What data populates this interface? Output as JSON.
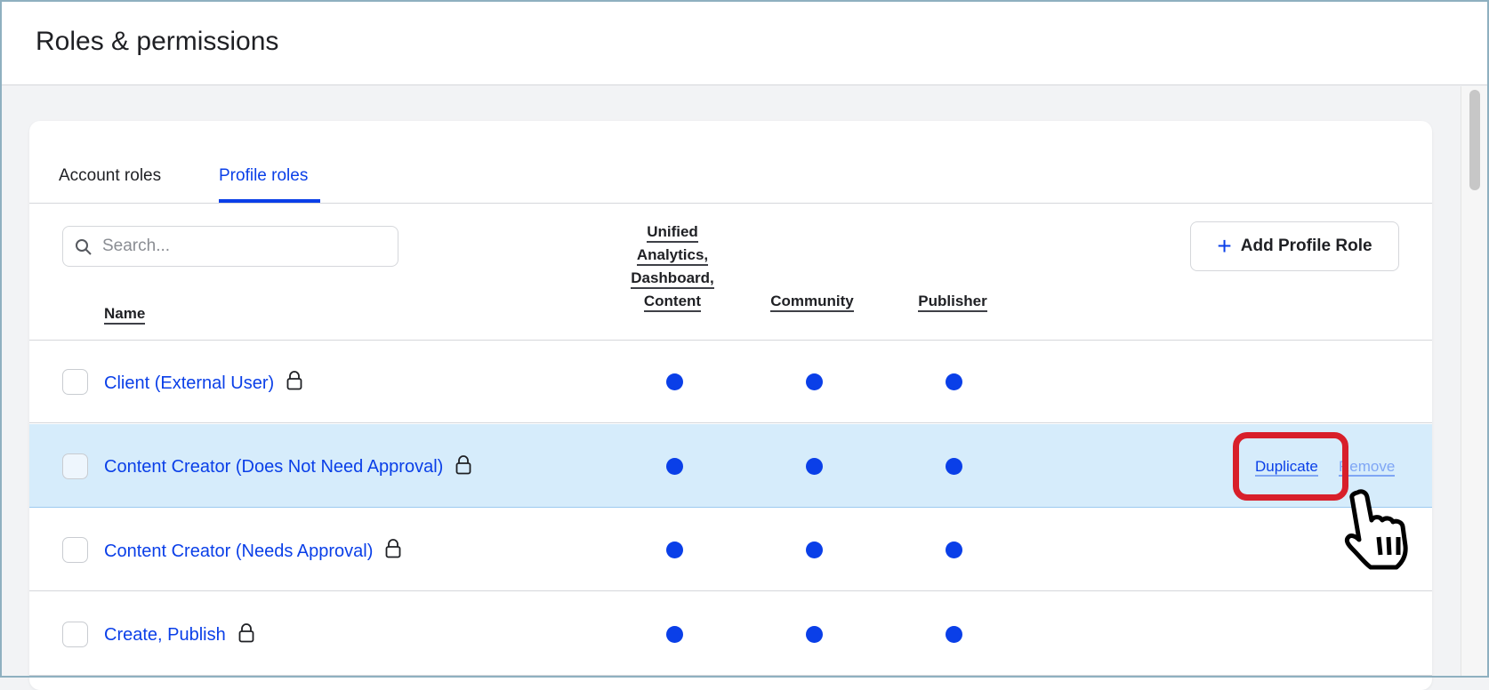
{
  "header": {
    "title": "Roles & permissions"
  },
  "tabs": [
    {
      "label": "Account roles",
      "active": false
    },
    {
      "label": "Profile roles",
      "active": true
    }
  ],
  "search": {
    "placeholder": "Search...",
    "value": ""
  },
  "add_button": {
    "label": "Add Profile Role",
    "icon": "plus-icon"
  },
  "columns": {
    "name": "Name",
    "col1": [
      "Unified",
      "Analytics,",
      "Dashboard,",
      "Content"
    ],
    "col2": "Community",
    "col3": "Publisher"
  },
  "rows": [
    {
      "name": "Client (External User)",
      "locked": true,
      "perms": [
        true,
        true,
        true
      ]
    },
    {
      "name": "Content Creator (Does Not Need Approval)",
      "locked": true,
      "perms": [
        true,
        true,
        true
      ],
      "hovered": true
    },
    {
      "name": "Content Creator (Needs Approval)",
      "locked": true,
      "perms": [
        true,
        true,
        true
      ]
    },
    {
      "name": "Create, Publish",
      "locked": true,
      "perms": [
        true,
        true,
        true
      ]
    }
  ],
  "row_actions": {
    "duplicate": "Duplicate",
    "remove": "Remove",
    "remove_visible": "emove"
  },
  "colors": {
    "accent": "#0a3fe8",
    "highlight_row": "#d6ecfb",
    "annotation": "#d81f2a"
  }
}
